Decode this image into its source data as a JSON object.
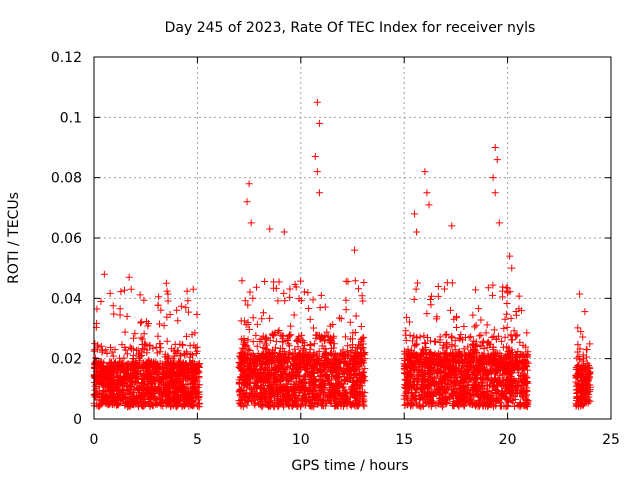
{
  "chart_data": {
    "type": "scatter",
    "title": "Day 245 of 2023, Rate Of TEC Index for receiver nyls",
    "xlabel": "GPS time / hours",
    "ylabel": "ROTI / TECUs",
    "xlim": [
      0,
      25
    ],
    "ylim": [
      0,
      0.12
    ],
    "xticks": [
      "0",
      "5",
      "10",
      "15",
      "20",
      "25"
    ],
    "yticks": [
      "0",
      "0.02",
      "0.04",
      "0.06",
      "0.08",
      "0.1",
      "0.12"
    ],
    "grid": true,
    "marker": "+",
    "color": "#ff0000",
    "series": [
      {
        "segments": [
          {
            "x_start": 0.0,
            "x_end": 5.1,
            "base": 0.013
          },
          {
            "x_start": 7.0,
            "x_end": 13.1,
            "base": 0.016
          },
          {
            "x_start": 15.0,
            "x_end": 21.0,
            "base": 0.016
          },
          {
            "x_start": 23.3,
            "x_end": 24.0,
            "base": 0.012
          }
        ],
        "peaks": [
          [
            0.5,
            0.048
          ],
          [
            1.7,
            0.047
          ],
          [
            1.8,
            0.043
          ],
          [
            3.5,
            0.045
          ],
          [
            4.8,
            0.043
          ],
          [
            7.5,
            0.078
          ],
          [
            7.4,
            0.072
          ],
          [
            7.6,
            0.065
          ],
          [
            8.5,
            0.063
          ],
          [
            9.2,
            0.062
          ],
          [
            10.8,
            0.105
          ],
          [
            10.9,
            0.098
          ],
          [
            10.7,
            0.087
          ],
          [
            10.8,
            0.082
          ],
          [
            10.9,
            0.075
          ],
          [
            12.6,
            0.056
          ],
          [
            15.5,
            0.068
          ],
          [
            15.6,
            0.062
          ],
          [
            16.0,
            0.082
          ],
          [
            16.1,
            0.075
          ],
          [
            16.2,
            0.071
          ],
          [
            17.3,
            0.064
          ],
          [
            19.4,
            0.09
          ],
          [
            19.5,
            0.086
          ],
          [
            19.3,
            0.08
          ],
          [
            19.4,
            0.075
          ],
          [
            19.6,
            0.065
          ],
          [
            20.1,
            0.054
          ],
          [
            20.2,
            0.05
          ]
        ]
      }
    ]
  }
}
